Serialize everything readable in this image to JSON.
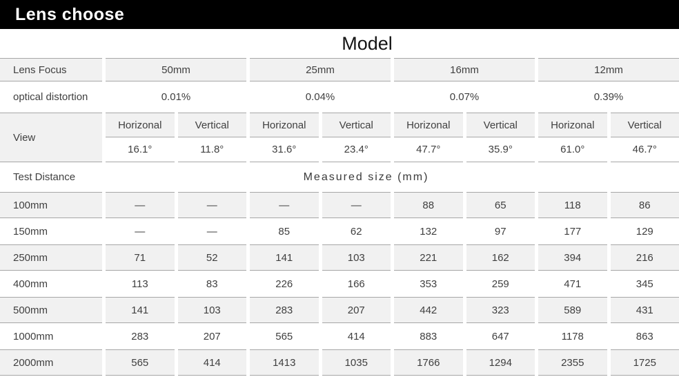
{
  "title_bar": {
    "title": "Lens choose"
  },
  "model_header": "Model",
  "row_headers": {
    "lens_focus": "Lens Focus",
    "optical_distortion": "optical distortion",
    "view": "View",
    "test_distance": "Test Distance"
  },
  "lens_models": [
    "50mm",
    "25mm",
    "16mm",
    "12mm"
  ],
  "optical_distortion_values": [
    "0.01%",
    "0.04%",
    "0.07%",
    "0.39%"
  ],
  "view_direction_headers": [
    "Horizonal",
    "Vertical",
    "Horizonal",
    "Vertical",
    "Horizonal",
    "Vertical",
    "Horizonal",
    "Vertical"
  ],
  "view_angles": [
    "16.1°",
    "11.8°",
    "31.6°",
    "23.4°",
    "47.7°",
    "35.9°",
    "61.0°",
    "46.7°"
  ],
  "measured_size_header": "Measured size (mm)",
  "distance_rows": [
    {
      "label": "100mm",
      "values": [
        "—",
        "—",
        "—",
        "—",
        "88",
        "65",
        "118",
        "86"
      ]
    },
    {
      "label": "150mm",
      "values": [
        "—",
        "—",
        "85",
        "62",
        "132",
        "97",
        "177",
        "129"
      ]
    },
    {
      "label": "250mm",
      "values": [
        "71",
        "52",
        "141",
        "103",
        "221",
        "162",
        "394",
        "216"
      ]
    },
    {
      "label": "400mm",
      "values": [
        "113",
        "83",
        "226",
        "166",
        "353",
        "259",
        "471",
        "345"
      ]
    },
    {
      "label": "500mm",
      "values": [
        "141",
        "103",
        "283",
        "207",
        "442",
        "323",
        "589",
        "431"
      ]
    },
    {
      "label": "1000mm",
      "values": [
        "283",
        "207",
        "565",
        "414",
        "883",
        "647",
        "1178",
        "863"
      ]
    },
    {
      "label": "2000mm",
      "values": [
        "565",
        "414",
        "1413",
        "1035",
        "1766",
        "1294",
        "2355",
        "1725"
      ]
    }
  ],
  "colors": {
    "title_bar_bg": "#000000",
    "title_bar_text": "#ffffff",
    "cell_fill": "#f1f1f1",
    "cell_border": "#a6a6a6",
    "text": "#3f3f3f"
  }
}
